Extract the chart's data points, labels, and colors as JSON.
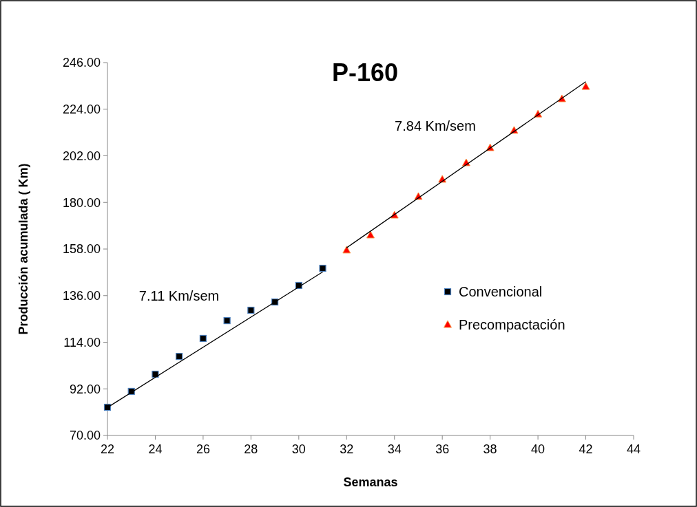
{
  "chart_data": {
    "type": "scatter",
    "title": "P-160",
    "xlabel": "Semanas",
    "ylabel": "Producción acumulada ( Km)",
    "xlim": [
      22,
      44
    ],
    "xticks": [
      22,
      24,
      26,
      28,
      30,
      32,
      34,
      36,
      38,
      40,
      42,
      44
    ],
    "ylim": [
      70,
      246
    ],
    "yticks": [
      {
        "value": 70,
        "label": "70.00"
      },
      {
        "value": 92,
        "label": "92.00"
      },
      {
        "value": 114,
        "label": "114.00"
      },
      {
        "value": 136,
        "label": "136.00"
      },
      {
        "value": 158,
        "label": "158.00"
      },
      {
        "value": 180,
        "label": "180.00"
      },
      {
        "value": 202,
        "label": "202.00"
      },
      {
        "value": 224,
        "label": "224.00"
      },
      {
        "value": 246,
        "label": "246.00"
      }
    ],
    "grid": false,
    "legend": "right",
    "series": [
      {
        "name": "Convencional",
        "marker": "square",
        "color": "#000000",
        "x": [
          22,
          23,
          24,
          25,
          26,
          27,
          28,
          29,
          30,
          31
        ],
        "values": [
          83.3,
          90.8,
          98.9,
          107.3,
          115.8,
          124.2,
          129.1,
          133.0,
          140.8,
          148.9
        ]
      },
      {
        "name": "Precompactación",
        "marker": "triangle",
        "color": "#ff0000",
        "x": [
          32,
          33,
          34,
          35,
          36,
          37,
          38,
          39,
          40,
          41,
          42
        ],
        "values": [
          157.4,
          164.5,
          173.9,
          182.7,
          190.8,
          198.6,
          205.7,
          213.9,
          221.6,
          228.8,
          234.6
        ]
      },
      {
        "type": "line",
        "marker": "none",
        "color": "#000000",
        "x": [
          22,
          31
        ],
        "values": [
          83.2,
          147.2
        ]
      },
      {
        "type": "line",
        "marker": "none",
        "color": "#000000",
        "x": [
          32,
          42
        ],
        "values": [
          158.6,
          237.0
        ]
      }
    ],
    "annotations": [
      "7.11 Km/sem",
      "7.84 Km/sem"
    ]
  }
}
